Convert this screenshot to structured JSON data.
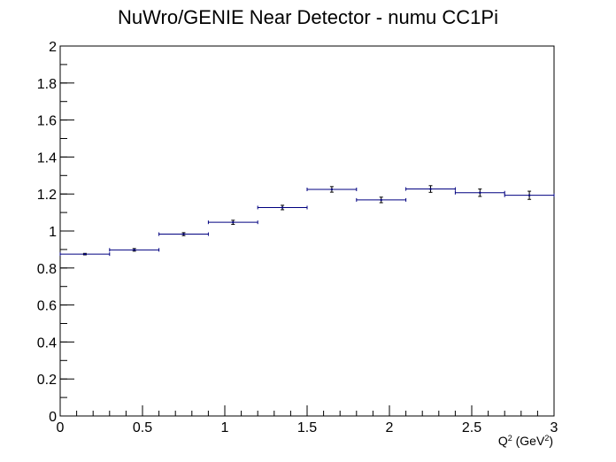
{
  "chart_data": {
    "type": "scatter",
    "title": "NuWro/GENIE Near Detector - numu CC1Pi",
    "xlabel": "Q^2 (GeV^2)",
    "ylabel": "",
    "xlim": [
      0,
      3
    ],
    "ylim": [
      0,
      2
    ],
    "x_ticks": [
      "0",
      "0.5",
      "1",
      "1.5",
      "2",
      "2.5",
      "3"
    ],
    "y_ticks": [
      "0",
      "0.2",
      "0.4",
      "0.6",
      "0.8",
      "1",
      "1.2",
      "1.4",
      "1.6",
      "1.8",
      "2"
    ],
    "grid": false,
    "series": [
      {
        "color": "#000080",
        "x": [
          0.15,
          0.45,
          0.75,
          1.05,
          1.35,
          1.65,
          1.95,
          2.25,
          2.55,
          2.85
        ],
        "x_low": [
          0.0,
          0.3,
          0.6,
          0.9,
          1.2,
          1.5,
          1.8,
          2.1,
          2.4,
          2.7
        ],
        "x_high": [
          0.3,
          0.6,
          0.9,
          1.2,
          1.5,
          1.8,
          2.1,
          2.4,
          2.7,
          3.0
        ],
        "y": [
          0.875,
          0.898,
          0.983,
          1.047,
          1.127,
          1.225,
          1.168,
          1.227,
          1.207,
          1.193
        ],
        "y_err": [
          0.004,
          0.007,
          0.008,
          0.011,
          0.012,
          0.015,
          0.015,
          0.018,
          0.02,
          0.022
        ]
      }
    ]
  }
}
